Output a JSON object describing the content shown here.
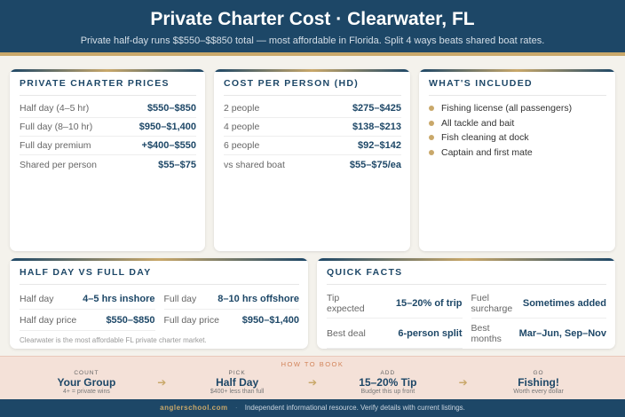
{
  "header": {
    "title": "Private Charter Cost · Clearwater, FL",
    "subtitle": "Private half-day runs $$550–$$850 total — most affordable in Florida. Split 4 ways beats shared boat rates."
  },
  "prices": {
    "title": "PRIVATE CHARTER PRICES",
    "rows": [
      {
        "label": "Half day (4–5 hr)",
        "value": "$550–$850"
      },
      {
        "label": "Full day (8–10 hr)",
        "value": "$950–$1,400"
      },
      {
        "label": "Full day premium",
        "value": "+$400–$550"
      },
      {
        "label": "Shared per person",
        "value": "$55–$75"
      }
    ]
  },
  "per_person": {
    "title": "COST PER PERSON (HD)",
    "rows": [
      {
        "label": "2 people",
        "value": "$275–$425"
      },
      {
        "label": "4 people",
        "value": "$138–$213"
      },
      {
        "label": "6 people",
        "value": "$92–$142"
      },
      {
        "label": "vs shared boat",
        "value": "$55–$75/ea"
      }
    ]
  },
  "included": {
    "title": "WHAT'S INCLUDED",
    "items": [
      "Fishing license (all passengers)",
      "All tackle and bait",
      "Fish cleaning at dock",
      "Captain and first mate"
    ]
  },
  "halffull": {
    "title": "HALF DAY VS FULL DAY",
    "cells": [
      {
        "label": "Half day",
        "value": "4–5 hrs inshore"
      },
      {
        "label": "Full day",
        "value": "8–10 hrs offshore"
      },
      {
        "label": "Half day price",
        "value": "$550–$850"
      },
      {
        "label": "Full day price",
        "value": "$950–$1,400"
      }
    ],
    "note": "Clearwater is the most affordable FL private charter market."
  },
  "facts": {
    "title": "QUICK FACTS",
    "cells": [
      {
        "label": "Tip expected",
        "value": "15–20% of trip"
      },
      {
        "label": "Fuel surcharge",
        "value": "Sometimes added"
      },
      {
        "label": "Best deal",
        "value": "6-person split"
      },
      {
        "label": "Best months",
        "value": "Mar–Jun, Sep–Nov"
      }
    ]
  },
  "booking": {
    "title": "HOW TO BOOK",
    "steps": [
      {
        "kicker": "COUNT",
        "value": "Your Group",
        "sub": "4+ = private wins"
      },
      {
        "kicker": "PICK",
        "value": "Half Day",
        "sub": "$400+ less than full"
      },
      {
        "kicker": "ADD",
        "value": "15–20% Tip",
        "sub": "Budget this up front"
      },
      {
        "kicker": "GO",
        "value": "Fishing!",
        "sub": "Worth every dollar"
      }
    ]
  },
  "footer": {
    "site": "anglerschool.com",
    "separator": "·",
    "text": "Independent informational resource. Verify details with current listings."
  }
}
